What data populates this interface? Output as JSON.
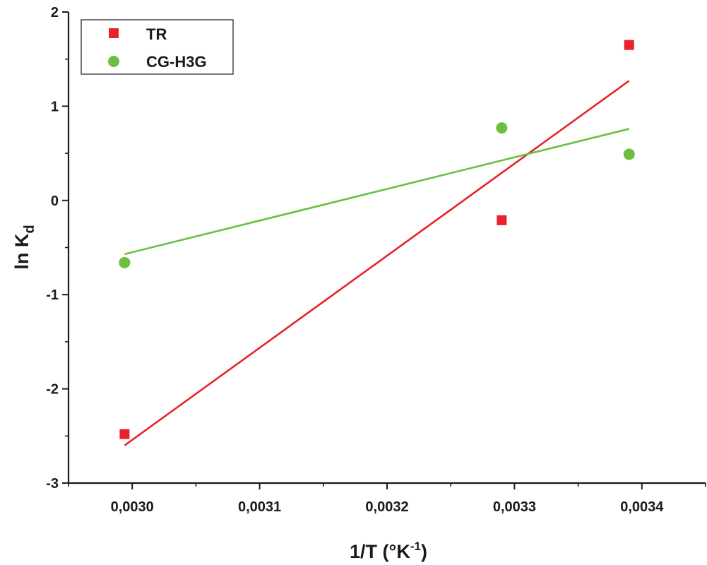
{
  "chart_data": {
    "type": "scatter",
    "title": "",
    "xlabel": "1/T (°K",
    "xlabel_sup": "-1",
    "xlabel_tail": ")",
    "ylabel": "ln K",
    "ylabel_sub": "d",
    "xlim": [
      0.00295,
      0.00345
    ],
    "ylim": [
      -3,
      2
    ],
    "x_ticks": [
      0.003,
      0.0031,
      0.0032,
      0.0033,
      0.0034
    ],
    "x_tick_labels": [
      "0,0030",
      "0,0031",
      "0,0032",
      "0,0033",
      "0,0034"
    ],
    "y_ticks": [
      -3,
      -2,
      -1,
      0,
      1,
      2
    ],
    "y_tick_labels": [
      "-3",
      "-2",
      "-1",
      "0",
      "1",
      "2"
    ],
    "grid": false,
    "legend_position": "top-left",
    "series": [
      {
        "name": "TR",
        "marker": "square",
        "color": "#e8222a",
        "x": [
          0.002994,
          0.00329,
          0.00339
        ],
        "y": [
          -2.48,
          -0.21,
          1.65
        ],
        "fit": {
          "x": [
            0.002994,
            0.00339
          ],
          "y": [
            -2.6,
            1.27
          ]
        }
      },
      {
        "name": "CG-H3G",
        "marker": "circle",
        "color": "#6cbf3f",
        "x": [
          0.002994,
          0.00329,
          0.00339
        ],
        "y": [
          -0.66,
          0.77,
          0.49
        ],
        "fit": {
          "x": [
            0.002994,
            0.00339
          ],
          "y": [
            -0.57,
            0.76
          ]
        }
      }
    ]
  }
}
